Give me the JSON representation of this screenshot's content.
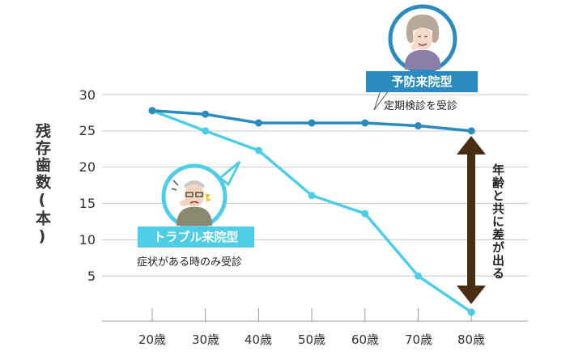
{
  "chart_data": {
    "type": "line",
    "ylabel": "残存歯数(本)",
    "x": [
      "20歳",
      "30歳",
      "40歳",
      "50歳",
      "60歳",
      "70歳",
      "80歳"
    ],
    "y_ticks": [
      "30",
      "25",
      "20",
      "15",
      "10",
      "5"
    ],
    "ylim": [
      0,
      30
    ],
    "grid": true,
    "series": [
      {
        "name": "予防来院型",
        "subtitle": "定期検診を受診",
        "color": "#2b8bbf",
        "values": [
          27.8,
          27.3,
          26.1,
          26.1,
          26.1,
          25.7,
          25.0
        ]
      },
      {
        "name": "トラブル来院型",
        "subtitle": "症状がある時のみ受診",
        "color": "#4dcde6",
        "values": [
          27.8,
          25.0,
          22.3,
          16.1,
          13.6,
          5.0,
          0.0
        ]
      }
    ],
    "annotation": "年齢と共に差が出る"
  },
  "colors": {
    "accent": "#4dcde6",
    "dark_blue": "#2b8bbf",
    "arrow": "#4a2e12",
    "grid": "#c8c8c8"
  },
  "icons": {
    "prevent": "smiling-woman-avatar",
    "trouble": "suffering-man-avatar"
  }
}
